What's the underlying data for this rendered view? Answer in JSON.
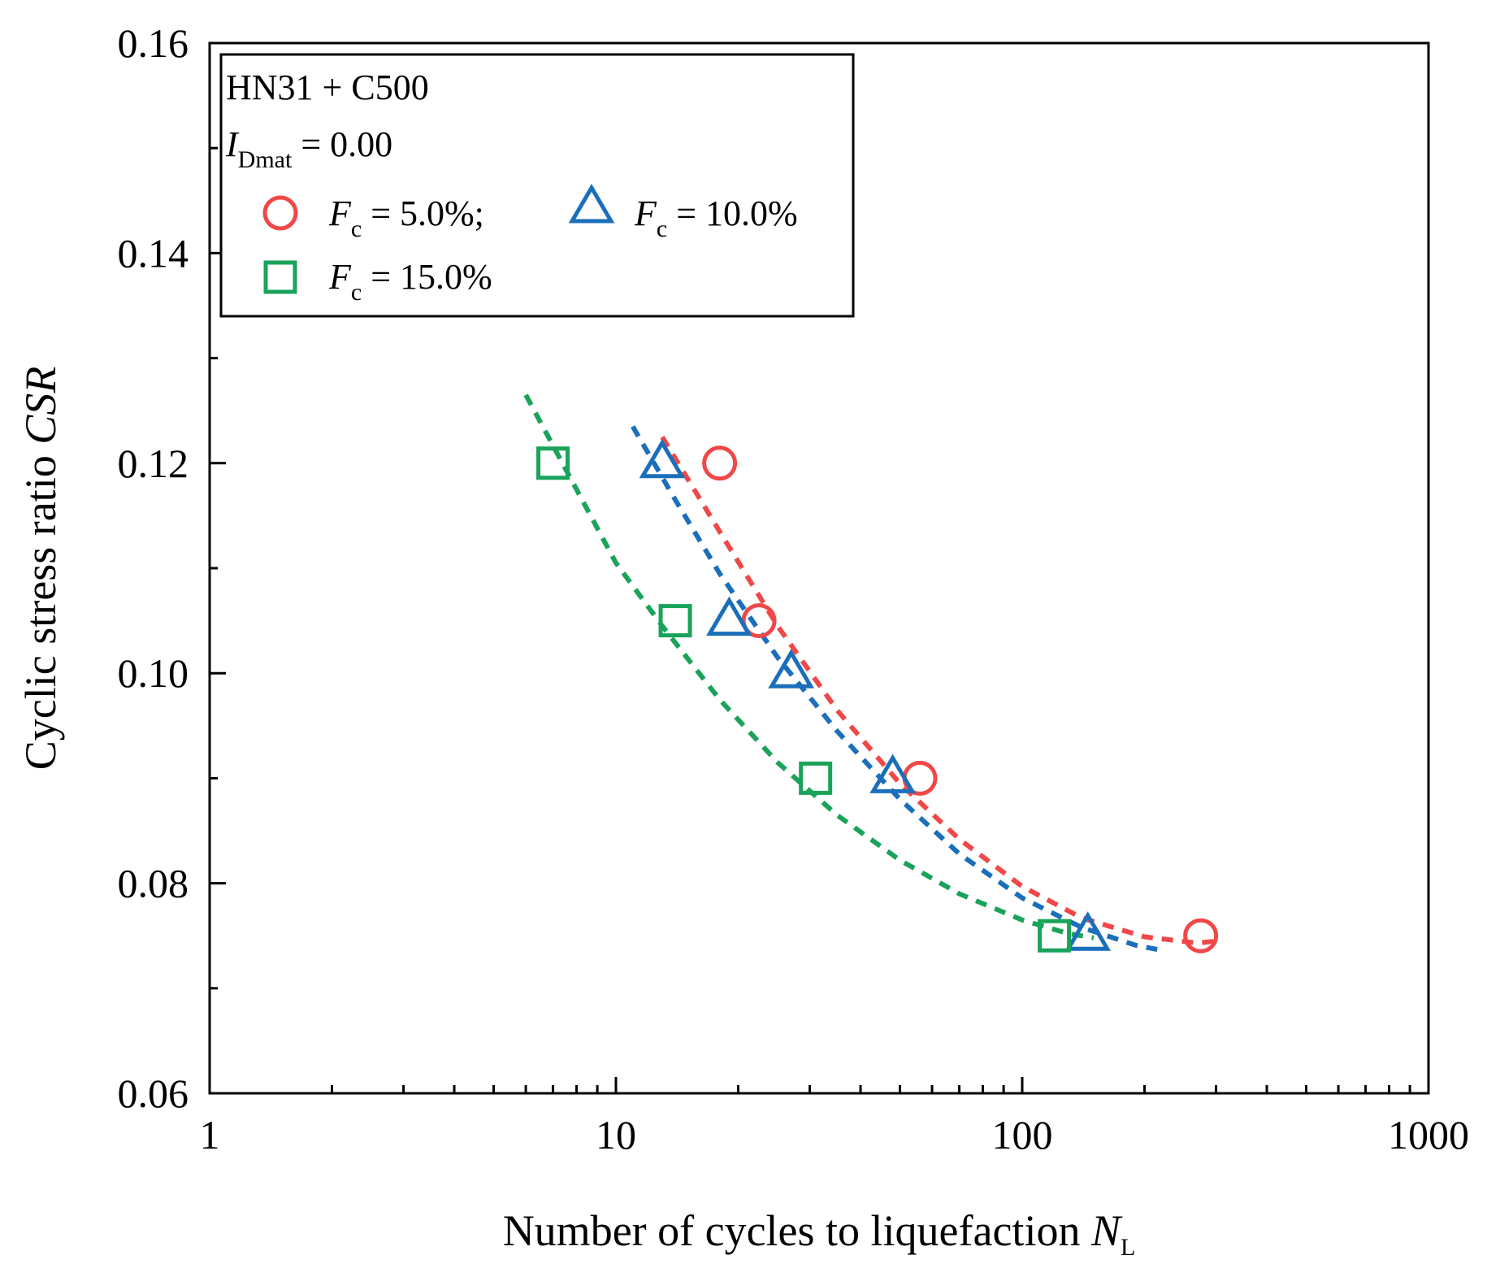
{
  "chart_data": {
    "type": "scatter",
    "xscale": "log",
    "xlim": [
      1,
      1000
    ],
    "ylim": [
      0.06,
      0.16
    ],
    "xlabel": {
      "main": "Number of cycles to liquefaction ",
      "symbol": "N",
      "sub": "L"
    },
    "ylabel": {
      "main": "Cyclic stress ratio ",
      "symbol": "CSR"
    },
    "x_ticks": [
      {
        "value": 1,
        "label": "1"
      },
      {
        "value": 10,
        "label": "10"
      },
      {
        "value": 100,
        "label": "100"
      },
      {
        "value": 1000,
        "label": "1000"
      }
    ],
    "y_ticks": [
      {
        "value": 0.06,
        "label": "0.06"
      },
      {
        "value": 0.08,
        "label": "0.08"
      },
      {
        "value": 0.1,
        "label": "0.10"
      },
      {
        "value": 0.12,
        "label": "0.12"
      },
      {
        "value": 0.14,
        "label": "0.14"
      },
      {
        "value": 0.16,
        "label": "0.16"
      }
    ],
    "legend": {
      "position": "top-left",
      "title": "HN31 + C500",
      "param": {
        "symbol": "I",
        "sub": "Dmat",
        "rest": " = 0.00"
      },
      "entries": [
        {
          "series": 0,
          "symbol": "F",
          "sub": "c",
          "rest": " = 5.0%;"
        },
        {
          "series": 1,
          "symbol": "F",
          "sub": "c",
          "rest": " = 10.0%"
        },
        {
          "series": 2,
          "symbol": "F",
          "sub": "c",
          "rest": " = 15.0%"
        }
      ]
    },
    "series": [
      {
        "name": "Fc = 5.0%",
        "marker": "circle",
        "color": "#f04848",
        "points": [
          [
            18,
            0.12
          ],
          [
            22.5,
            0.105
          ],
          [
            56,
            0.09
          ],
          [
            275,
            0.075
          ]
        ],
        "fit": [
          [
            13,
            0.1225
          ],
          [
            18,
            0.1135
          ],
          [
            25,
            0.1045
          ],
          [
            35,
            0.0965
          ],
          [
            50,
            0.0895
          ],
          [
            70,
            0.0842
          ],
          [
            100,
            0.0797
          ],
          [
            140,
            0.0767
          ],
          [
            200,
            0.0749
          ],
          [
            270,
            0.0743
          ],
          [
            300,
            0.0745
          ]
        ]
      },
      {
        "name": "Fc = 10.0%",
        "marker": "triangle",
        "color": "#1b6fba",
        "points": [
          [
            13,
            0.12
          ],
          [
            19,
            0.105
          ],
          [
            27,
            0.1
          ],
          [
            48,
            0.09
          ],
          [
            145,
            0.075
          ]
        ],
        "fit": [
          [
            11,
            0.1235
          ],
          [
            14,
            0.1165
          ],
          [
            18,
            0.1095
          ],
          [
            25,
            0.1015
          ],
          [
            35,
            0.0945
          ],
          [
            50,
            0.088
          ],
          [
            70,
            0.0828
          ],
          [
            100,
            0.0786
          ],
          [
            140,
            0.0758
          ],
          [
            190,
            0.0741
          ],
          [
            215,
            0.0737
          ]
        ]
      },
      {
        "name": "Fc = 15.0%",
        "marker": "square",
        "color": "#1aa35a",
        "points": [
          [
            7,
            0.12
          ],
          [
            14,
            0.105
          ],
          [
            31,
            0.09
          ],
          [
            120,
            0.075
          ]
        ],
        "fit": [
          [
            6,
            0.1265
          ],
          [
            8,
            0.1175
          ],
          [
            10,
            0.1105
          ],
          [
            13,
            0.1045
          ],
          [
            18,
            0.0975
          ],
          [
            25,
            0.0915
          ],
          [
            35,
            0.0865
          ],
          [
            50,
            0.0822
          ],
          [
            70,
            0.079
          ],
          [
            100,
            0.0765
          ],
          [
            130,
            0.0752
          ],
          [
            150,
            0.0748
          ]
        ]
      }
    ]
  }
}
